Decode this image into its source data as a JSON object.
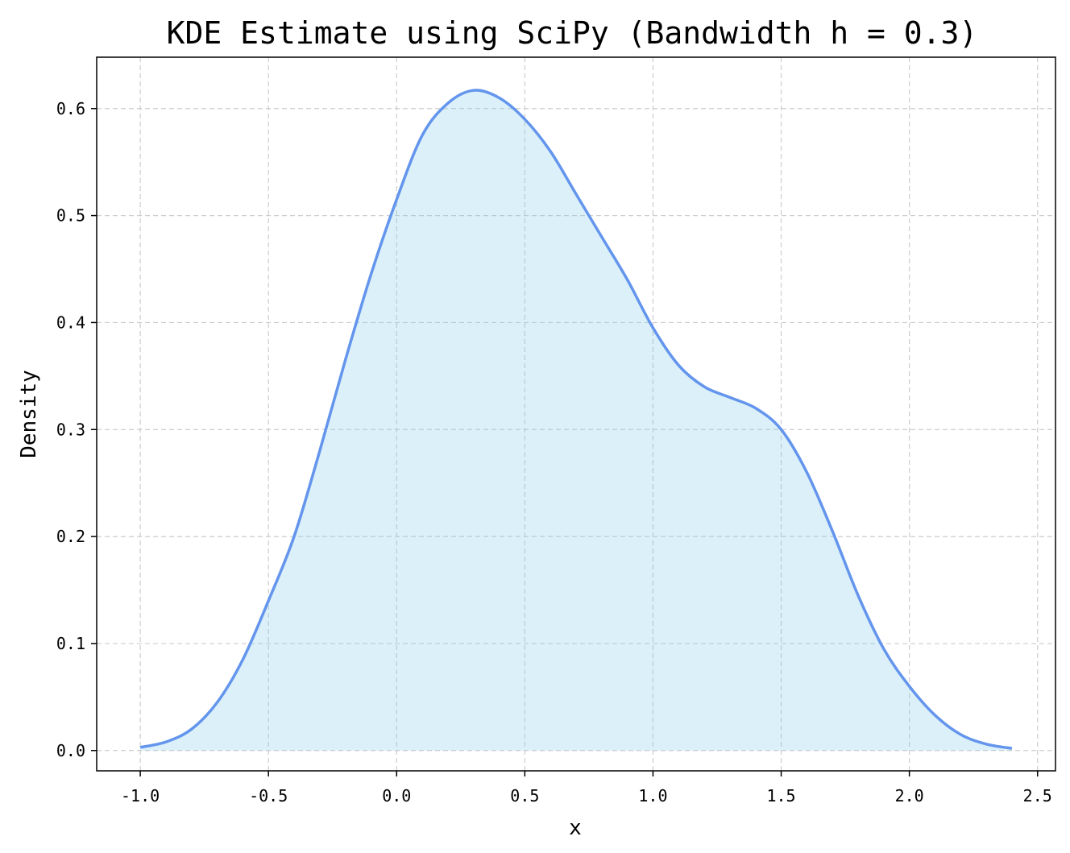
{
  "chart_data": {
    "type": "area",
    "title": "KDE Estimate using SciPy (Bandwidth h = 0.3)",
    "xlabel": "x",
    "ylabel": "Density",
    "xlim": [
      -1.17,
      2.57
    ],
    "ylim": [
      -0.019,
      0.648
    ],
    "x_ticks": [
      -1.0,
      -0.5,
      0.0,
      0.5,
      1.0,
      1.5,
      2.0,
      2.5
    ],
    "x_tick_labels": [
      "-1.0",
      "-0.5",
      "0.0",
      "0.5",
      "1.0",
      "1.5",
      "2.0",
      "2.5"
    ],
    "y_ticks": [
      0.0,
      0.1,
      0.2,
      0.3,
      0.4,
      0.5,
      0.6
    ],
    "y_tick_labels": [
      "0.0",
      "0.1",
      "0.2",
      "0.3",
      "0.4",
      "0.5",
      "0.6"
    ],
    "grid": true,
    "series": [
      {
        "x": [
          -1.0,
          -0.9,
          -0.8,
          -0.7,
          -0.6,
          -0.5,
          -0.4,
          -0.3,
          -0.2,
          -0.1,
          0.0,
          0.1,
          0.2,
          0.3,
          0.4,
          0.5,
          0.6,
          0.7,
          0.8,
          0.9,
          1.0,
          1.1,
          1.2,
          1.3,
          1.4,
          1.5,
          1.6,
          1.7,
          1.8,
          1.9,
          2.0,
          2.1,
          2.2,
          2.3,
          2.4
        ],
        "y": [
          0.003,
          0.008,
          0.02,
          0.045,
          0.085,
          0.14,
          0.2,
          0.28,
          0.365,
          0.445,
          0.515,
          0.575,
          0.605,
          0.617,
          0.61,
          0.59,
          0.56,
          0.52,
          0.48,
          0.44,
          0.395,
          0.36,
          0.34,
          0.33,
          0.32,
          0.3,
          0.26,
          0.205,
          0.145,
          0.095,
          0.06,
          0.033,
          0.015,
          0.006,
          0.002
        ]
      }
    ],
    "colors": {
      "line": "#6495ED",
      "fill": "#87CEEB",
      "grid": "#cccccc",
      "axes": "#000000"
    }
  }
}
